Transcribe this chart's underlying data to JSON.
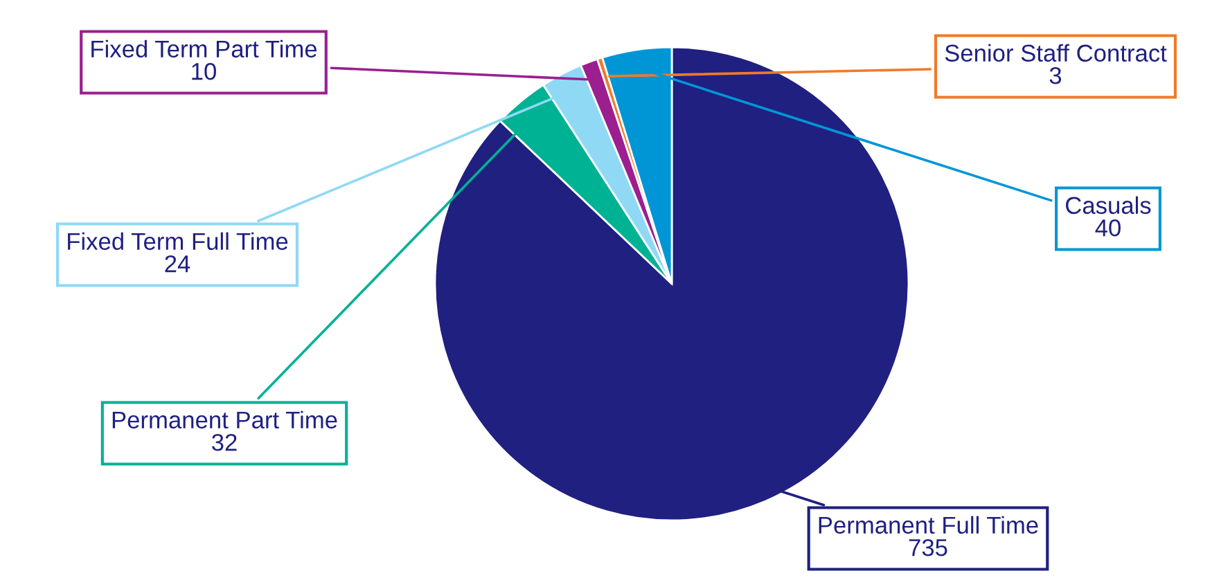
{
  "chart_data": {
    "type": "pie",
    "categories": [
      "Permanent Full Time",
      "Permanent Part Time",
      "Fixed Term Full Time",
      "Fixed Term Part Time",
      "Senior Staff Contract",
      "Casuals"
    ],
    "values": [
      735,
      32,
      24,
      10,
      3,
      40
    ],
    "colors": [
      "#1f2080",
      "#00b294",
      "#8fd9f5",
      "#9b1f8f",
      "#f07a2a",
      "#0096d6"
    ],
    "data_labels": true
  }
}
